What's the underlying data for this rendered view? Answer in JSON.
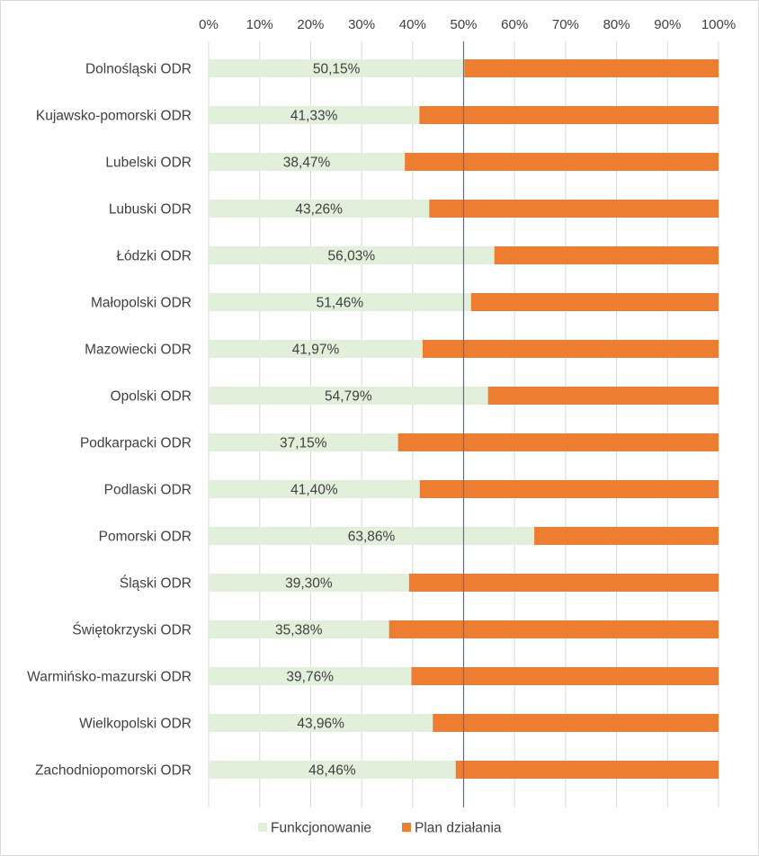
{
  "chart_data": {
    "type": "bar",
    "orientation": "horizontal",
    "stacked": "percent",
    "categories": [
      "Dolnośląski ODR",
      "Kujawsko-pomorski ODR",
      "Lubelski ODR",
      "Lubuski ODR",
      "Łódzki ODR",
      "Małopolski ODR",
      "Mazowiecki ODR",
      "Opolski ODR",
      "Podkarpacki ODR",
      "Podlaski ODR",
      "Pomorski ODR",
      "Śląski ODR",
      "Świętokrzyski ODR",
      "Warmińsko-mazurski ODR",
      "Wielkopolski ODR",
      "Zachodniopomorski ODR"
    ],
    "series": [
      {
        "name": "Funkcjonowanie",
        "color": "#e2efda",
        "values": [
          50.15,
          41.33,
          38.47,
          43.26,
          56.03,
          51.46,
          41.97,
          54.79,
          37.15,
          41.4,
          63.86,
          39.3,
          35.38,
          39.76,
          43.96,
          48.46
        ],
        "data_labels": [
          "50,15%",
          "41,33%",
          "38,47%",
          "43,26%",
          "56,03%",
          "51,46%",
          "41,97%",
          "54,79%",
          "37,15%",
          "41,40%",
          "63,86%",
          "39,30%",
          "35,38%",
          "39,76%",
          "43,96%",
          "48,46%"
        ]
      },
      {
        "name": "Plan działania",
        "color": "#ed7d31",
        "values": [
          49.85,
          58.67,
          61.53,
          56.74,
          43.97,
          48.54,
          58.03,
          45.21,
          62.85,
          58.6,
          36.14,
          60.7,
          64.62,
          60.24,
          56.04,
          51.54
        ]
      }
    ],
    "x_ticks": [
      "0%",
      "10%",
      "20%",
      "30%",
      "40%",
      "50%",
      "60%",
      "70%",
      "80%",
      "90%",
      "100%"
    ],
    "xlim": [
      0,
      100
    ],
    "reference_line": {
      "x": 50,
      "color": "#4472c4"
    },
    "grid": true,
    "gridline_color": "#d9d9d9",
    "axis_position": "top",
    "legend": {
      "position": "bottom"
    },
    "title": "",
    "xlabel": "",
    "ylabel": ""
  }
}
